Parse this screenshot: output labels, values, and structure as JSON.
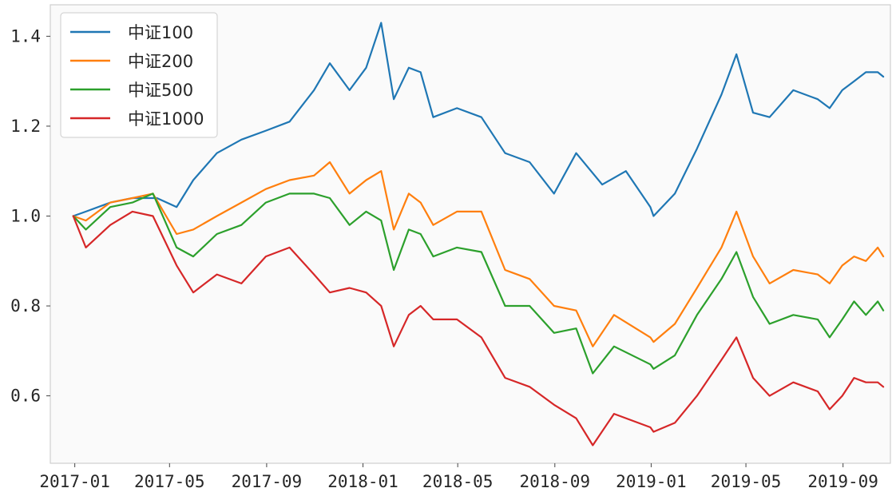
{
  "chart_data": {
    "type": "line",
    "title": "",
    "xlabel": "",
    "ylabel": "",
    "xlim": [
      "2016-12-01",
      "2019-10-31"
    ],
    "ylim": [
      0.45,
      1.47
    ],
    "grid": false,
    "legend_position": "top-left",
    "x_ticks": [
      "2017-01",
      "2017-05",
      "2017-09",
      "2018-01",
      "2018-05",
      "2018-09",
      "2019-01",
      "2019-05",
      "2019-09"
    ],
    "y_ticks": [
      "0.6",
      "0.8",
      "1.0",
      "1.2",
      "1.4"
    ],
    "series": [
      {
        "name": "中证100",
        "color": "#1f77b4",
        "points": [
          [
            "2016-12-30",
            1.0
          ],
          [
            "2017-01-15",
            1.01
          ],
          [
            "2017-02-15",
            1.03
          ],
          [
            "2017-03-15",
            1.04
          ],
          [
            "2017-04-15",
            1.04
          ],
          [
            "2017-05-10",
            1.02
          ],
          [
            "2017-05-31",
            1.08
          ],
          [
            "2017-06-30",
            1.14
          ],
          [
            "2017-07-31",
            1.17
          ],
          [
            "2017-08-31",
            1.19
          ],
          [
            "2017-09-30",
            1.21
          ],
          [
            "2017-10-31",
            1.28
          ],
          [
            "2017-11-20",
            1.34
          ],
          [
            "2017-12-15",
            1.28
          ],
          [
            "2018-01-05",
            1.33
          ],
          [
            "2018-01-24",
            1.43
          ],
          [
            "2018-02-09",
            1.26
          ],
          [
            "2018-02-28",
            1.33
          ],
          [
            "2018-03-15",
            1.32
          ],
          [
            "2018-03-31",
            1.22
          ],
          [
            "2018-04-30",
            1.24
          ],
          [
            "2018-05-31",
            1.22
          ],
          [
            "2018-06-30",
            1.14
          ],
          [
            "2018-07-31",
            1.12
          ],
          [
            "2018-08-31",
            1.05
          ],
          [
            "2018-09-28",
            1.14
          ],
          [
            "2018-10-31",
            1.07
          ],
          [
            "2018-11-30",
            1.1
          ],
          [
            "2018-12-31",
            1.02
          ],
          [
            "2019-01-04",
            1.0
          ],
          [
            "2019-01-31",
            1.05
          ],
          [
            "2019-02-28",
            1.15
          ],
          [
            "2019-03-31",
            1.27
          ],
          [
            "2019-04-19",
            1.36
          ],
          [
            "2019-05-10",
            1.23
          ],
          [
            "2019-05-31",
            1.22
          ],
          [
            "2019-06-30",
            1.28
          ],
          [
            "2019-07-31",
            1.26
          ],
          [
            "2019-08-15",
            1.24
          ],
          [
            "2019-08-31",
            1.28
          ],
          [
            "2019-09-15",
            1.3
          ],
          [
            "2019-09-30",
            1.32
          ],
          [
            "2019-10-15",
            1.32
          ],
          [
            "2019-10-22",
            1.31
          ]
        ]
      },
      {
        "name": "中证200",
        "color": "#ff7f0e",
        "points": [
          [
            "2016-12-30",
            1.0
          ],
          [
            "2017-01-15",
            0.99
          ],
          [
            "2017-02-15",
            1.03
          ],
          [
            "2017-03-15",
            1.04
          ],
          [
            "2017-04-10",
            1.05
          ],
          [
            "2017-05-10",
            0.96
          ],
          [
            "2017-05-31",
            0.97
          ],
          [
            "2017-06-30",
            1.0
          ],
          [
            "2017-07-31",
            1.03
          ],
          [
            "2017-08-31",
            1.06
          ],
          [
            "2017-09-30",
            1.08
          ],
          [
            "2017-10-31",
            1.09
          ],
          [
            "2017-11-20",
            1.12
          ],
          [
            "2017-12-15",
            1.05
          ],
          [
            "2018-01-05",
            1.08
          ],
          [
            "2018-01-24",
            1.1
          ],
          [
            "2018-02-09",
            0.97
          ],
          [
            "2018-02-28",
            1.05
          ],
          [
            "2018-03-15",
            1.03
          ],
          [
            "2018-03-31",
            0.98
          ],
          [
            "2018-04-30",
            1.01
          ],
          [
            "2018-05-31",
            1.01
          ],
          [
            "2018-06-30",
            0.88
          ],
          [
            "2018-07-31",
            0.86
          ],
          [
            "2018-08-31",
            0.8
          ],
          [
            "2018-09-28",
            0.79
          ],
          [
            "2018-10-19",
            0.71
          ],
          [
            "2018-11-15",
            0.78
          ],
          [
            "2018-12-31",
            0.73
          ],
          [
            "2019-01-04",
            0.72
          ],
          [
            "2019-01-31",
            0.76
          ],
          [
            "2019-02-28",
            0.84
          ],
          [
            "2019-03-31",
            0.93
          ],
          [
            "2019-04-19",
            1.01
          ],
          [
            "2019-05-10",
            0.91
          ],
          [
            "2019-05-31",
            0.85
          ],
          [
            "2019-06-30",
            0.88
          ],
          [
            "2019-07-31",
            0.87
          ],
          [
            "2019-08-15",
            0.85
          ],
          [
            "2019-08-31",
            0.89
          ],
          [
            "2019-09-15",
            0.91
          ],
          [
            "2019-09-30",
            0.9
          ],
          [
            "2019-10-15",
            0.93
          ],
          [
            "2019-10-22",
            0.91
          ]
        ]
      },
      {
        "name": "中证500",
        "color": "#2ca02c",
        "points": [
          [
            "2016-12-30",
            1.0
          ],
          [
            "2017-01-15",
            0.97
          ],
          [
            "2017-02-15",
            1.02
          ],
          [
            "2017-03-15",
            1.03
          ],
          [
            "2017-04-10",
            1.05
          ],
          [
            "2017-05-10",
            0.93
          ],
          [
            "2017-05-31",
            0.91
          ],
          [
            "2017-06-30",
            0.96
          ],
          [
            "2017-07-31",
            0.98
          ],
          [
            "2017-08-31",
            1.03
          ],
          [
            "2017-09-30",
            1.05
          ],
          [
            "2017-10-31",
            1.05
          ],
          [
            "2017-11-20",
            1.04
          ],
          [
            "2017-12-15",
            0.98
          ],
          [
            "2018-01-05",
            1.01
          ],
          [
            "2018-01-24",
            0.99
          ],
          [
            "2018-02-09",
            0.88
          ],
          [
            "2018-02-28",
            0.97
          ],
          [
            "2018-03-15",
            0.96
          ],
          [
            "2018-03-31",
            0.91
          ],
          [
            "2018-04-30",
            0.93
          ],
          [
            "2018-05-31",
            0.92
          ],
          [
            "2018-06-30",
            0.8
          ],
          [
            "2018-07-31",
            0.8
          ],
          [
            "2018-08-31",
            0.74
          ],
          [
            "2018-09-28",
            0.75
          ],
          [
            "2018-10-19",
            0.65
          ],
          [
            "2018-11-15",
            0.71
          ],
          [
            "2018-12-31",
            0.67
          ],
          [
            "2019-01-04",
            0.66
          ],
          [
            "2019-01-31",
            0.69
          ],
          [
            "2019-02-28",
            0.78
          ],
          [
            "2019-03-31",
            0.86
          ],
          [
            "2019-04-19",
            0.92
          ],
          [
            "2019-05-10",
            0.82
          ],
          [
            "2019-05-31",
            0.76
          ],
          [
            "2019-06-30",
            0.78
          ],
          [
            "2019-07-31",
            0.77
          ],
          [
            "2019-08-15",
            0.73
          ],
          [
            "2019-08-31",
            0.77
          ],
          [
            "2019-09-15",
            0.81
          ],
          [
            "2019-09-30",
            0.78
          ],
          [
            "2019-10-15",
            0.81
          ],
          [
            "2019-10-22",
            0.79
          ]
        ]
      },
      {
        "name": "中证1000",
        "color": "#d62728",
        "points": [
          [
            "2016-12-30",
            1.0
          ],
          [
            "2017-01-15",
            0.93
          ],
          [
            "2017-02-15",
            0.98
          ],
          [
            "2017-03-15",
            1.01
          ],
          [
            "2017-04-10",
            1.0
          ],
          [
            "2017-05-10",
            0.89
          ],
          [
            "2017-05-31",
            0.83
          ],
          [
            "2017-06-30",
            0.87
          ],
          [
            "2017-07-31",
            0.85
          ],
          [
            "2017-08-31",
            0.91
          ],
          [
            "2017-09-30",
            0.93
          ],
          [
            "2017-10-31",
            0.87
          ],
          [
            "2017-11-20",
            0.83
          ],
          [
            "2017-12-15",
            0.84
          ],
          [
            "2018-01-05",
            0.83
          ],
          [
            "2018-01-24",
            0.8
          ],
          [
            "2018-02-09",
            0.71
          ],
          [
            "2018-02-28",
            0.78
          ],
          [
            "2018-03-15",
            0.8
          ],
          [
            "2018-03-31",
            0.77
          ],
          [
            "2018-04-30",
            0.77
          ],
          [
            "2018-05-31",
            0.73
          ],
          [
            "2018-06-30",
            0.64
          ],
          [
            "2018-07-31",
            0.62
          ],
          [
            "2018-08-31",
            0.58
          ],
          [
            "2018-09-28",
            0.55
          ],
          [
            "2018-10-19",
            0.49
          ],
          [
            "2018-11-15",
            0.56
          ],
          [
            "2018-12-31",
            0.53
          ],
          [
            "2019-01-04",
            0.52
          ],
          [
            "2019-01-31",
            0.54
          ],
          [
            "2019-02-28",
            0.6
          ],
          [
            "2019-03-31",
            0.68
          ],
          [
            "2019-04-19",
            0.73
          ],
          [
            "2019-05-10",
            0.64
          ],
          [
            "2019-05-31",
            0.6
          ],
          [
            "2019-06-30",
            0.63
          ],
          [
            "2019-07-31",
            0.61
          ],
          [
            "2019-08-15",
            0.57
          ],
          [
            "2019-08-31",
            0.6
          ],
          [
            "2019-09-15",
            0.64
          ],
          [
            "2019-09-30",
            0.63
          ],
          [
            "2019-10-15",
            0.63
          ],
          [
            "2019-10-22",
            0.62
          ]
        ]
      }
    ]
  }
}
